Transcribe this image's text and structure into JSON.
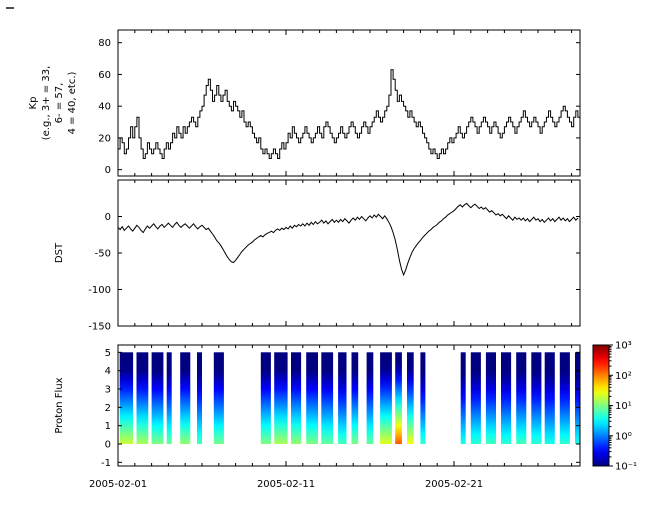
{
  "figure": {
    "background": "#ffffff",
    "line_color": "#000000",
    "frame_color": "#000000"
  },
  "x_axis": {
    "tick_labels": [
      "2005-02-01",
      "2005-02-11",
      "2005-02-21"
    ],
    "tick_days": [
      0,
      10,
      20
    ],
    "range_days": [
      0,
      27.5
    ],
    "minor_tick_interval_days": 1
  },
  "chart_data": [
    {
      "type": "line",
      "name": "kp-index",
      "ylabel_lines": [
        "Kp",
        "(e.g., 3+ = 33,",
        "6- = 57,",
        "4 = 40, etc.)"
      ],
      "ylim": [
        -4,
        88
      ],
      "yticks": [
        0,
        20,
        40,
        60,
        80
      ],
      "ytick_labels": [
        "0",
        "20",
        "40",
        "60",
        "80"
      ],
      "step": true,
      "x_start_day": 0,
      "dt_days": 0.125,
      "values": [
        13,
        20,
        17,
        10,
        13,
        20,
        27,
        20,
        27,
        33,
        20,
        13,
        7,
        10,
        17,
        13,
        10,
        13,
        17,
        13,
        10,
        7,
        13,
        17,
        13,
        17,
        23,
        20,
        27,
        23,
        20,
        27,
        23,
        27,
        30,
        33,
        30,
        27,
        33,
        37,
        40,
        47,
        53,
        57,
        50,
        43,
        47,
        53,
        47,
        43,
        47,
        50,
        43,
        40,
        37,
        43,
        40,
        37,
        33,
        37,
        30,
        27,
        30,
        27,
        23,
        20,
        17,
        20,
        13,
        10,
        13,
        10,
        7,
        10,
        13,
        10,
        7,
        13,
        17,
        13,
        17,
        23,
        20,
        27,
        23,
        20,
        17,
        20,
        23,
        27,
        23,
        20,
        17,
        20,
        23,
        27,
        23,
        20,
        27,
        30,
        27,
        23,
        20,
        17,
        20,
        23,
        27,
        23,
        20,
        23,
        27,
        30,
        27,
        23,
        20,
        23,
        27,
        30,
        27,
        23,
        27,
        30,
        33,
        37,
        33,
        30,
        33,
        37,
        40,
        47,
        63,
        57,
        50,
        43,
        47,
        43,
        40,
        37,
        33,
        37,
        33,
        30,
        27,
        30,
        27,
        23,
        20,
        17,
        13,
        10,
        13,
        10,
        7,
        10,
        13,
        10,
        13,
        17,
        20,
        17,
        20,
        23,
        27,
        23,
        20,
        23,
        27,
        30,
        33,
        30,
        27,
        23,
        27,
        30,
        33,
        30,
        27,
        23,
        27,
        30,
        27,
        23,
        20,
        23,
        27,
        30,
        33,
        30,
        27,
        23,
        27,
        30,
        33,
        37,
        33,
        30,
        27,
        30,
        33,
        30,
        27,
        23,
        27,
        30,
        33,
        37,
        33,
        30,
        27,
        30,
        33,
        37,
        40,
        37,
        33,
        30,
        27,
        33,
        37,
        33
      ]
    },
    {
      "type": "line",
      "name": "dst-index",
      "ylabel_lines": [
        "DST"
      ],
      "ylim": [
        -150,
        50
      ],
      "yticks": [
        0,
        -50,
        -100,
        -150
      ],
      "ytick_labels": [
        "0",
        "-50",
        "-100",
        "-150"
      ],
      "step": false,
      "x_start_day": 0,
      "dt_days": 0.125,
      "values": [
        -15,
        -18,
        -14,
        -19,
        -16,
        -13,
        -17,
        -20,
        -16,
        -12,
        -15,
        -19,
        -22,
        -17,
        -13,
        -16,
        -13,
        -10,
        -14,
        -17,
        -13,
        -11,
        -15,
        -12,
        -9,
        -12,
        -15,
        -11,
        -8,
        -12,
        -15,
        -12,
        -10,
        -13,
        -16,
        -13,
        -10,
        -14,
        -17,
        -14,
        -12,
        -15,
        -18,
        -16,
        -20,
        -24,
        -28,
        -33,
        -36,
        -40,
        -45,
        -50,
        -55,
        -59,
        -62,
        -63,
        -60,
        -56,
        -52,
        -48,
        -45,
        -42,
        -39,
        -37,
        -35,
        -32,
        -30,
        -28,
        -26,
        -28,
        -25,
        -23,
        -22,
        -20,
        -22,
        -19,
        -17,
        -19,
        -16,
        -18,
        -15,
        -17,
        -13,
        -16,
        -12,
        -14,
        -11,
        -13,
        -10,
        -13,
        -9,
        -12,
        -8,
        -11,
        -7,
        -10,
        -8,
        -5,
        -9,
        -6,
        -10,
        -7,
        -4,
        -8,
        -5,
        -8,
        -4,
        -7,
        -3,
        -6,
        -9,
        -5,
        -2,
        -5,
        -1,
        -4,
        0,
        -3,
        -6,
        -2,
        1,
        -2,
        2,
        -1,
        3,
        0,
        -3,
        1,
        -3,
        -8,
        -14,
        -22,
        -32,
        -45,
        -60,
        -72,
        -80,
        -73,
        -64,
        -56,
        -49,
        -44,
        -40,
        -36,
        -33,
        -29,
        -26,
        -23,
        -20,
        -18,
        -15,
        -13,
        -11,
        -8,
        -6,
        -3,
        -1,
        2,
        4,
        6,
        8,
        11,
        14,
        16,
        13,
        16,
        18,
        15,
        12,
        15,
        17,
        14,
        11,
        13,
        10,
        12,
        9,
        6,
        8,
        5,
        2,
        4,
        1,
        3,
        0,
        -3,
        1,
        -2,
        -5,
        -1,
        -4,
        -2,
        -5,
        -2,
        -6,
        -3,
        -7,
        -4,
        -1,
        -5,
        -3,
        -7,
        -4,
        -8,
        -5,
        -2,
        -6,
        -3,
        -7,
        -4,
        -1,
        -5,
        -2,
        -6,
        -3,
        -7,
        -4,
        -1,
        -5,
        -2
      ]
    },
    {
      "type": "heatmap",
      "name": "proton-flux-spectrogram",
      "ylabel_lines": [
        "Proton Flux"
      ],
      "ylim": [
        -1.2,
        5.4
      ],
      "yticks": [
        -1,
        0,
        1,
        2,
        3,
        4,
        5
      ],
      "ytick_labels": [
        "-1",
        "0",
        "1",
        "2",
        "3",
        "4",
        "5"
      ],
      "bar_y_range": [
        0,
        5
      ],
      "colormap": "jet",
      "flux_log_range": [
        -1,
        3
      ],
      "bars": [
        [
          0.1,
          0.9,
          20
        ],
        [
          1.1,
          1.8,
          15
        ],
        [
          2.0,
          2.7,
          10
        ],
        [
          2.9,
          3.2,
          8
        ],
        [
          3.7,
          4.3,
          12
        ],
        [
          4.7,
          5.0,
          6
        ],
        [
          5.7,
          6.3,
          9
        ],
        [
          8.5,
          9.1,
          10
        ],
        [
          9.3,
          10.1,
          15
        ],
        [
          10.3,
          10.9,
          12
        ],
        [
          11.2,
          11.9,
          10
        ],
        [
          12.1,
          12.8,
          8
        ],
        [
          13.1,
          13.6,
          6
        ],
        [
          13.9,
          14.3,
          10
        ],
        [
          14.8,
          15.2,
          8
        ],
        [
          15.6,
          16.3,
          25
        ],
        [
          16.5,
          16.9,
          150
        ],
        [
          17.2,
          17.6,
          30
        ],
        [
          18.0,
          18.3,
          5
        ],
        [
          20.4,
          20.7,
          4
        ],
        [
          21.0,
          21.6,
          5
        ],
        [
          21.9,
          22.5,
          6
        ],
        [
          22.8,
          23.4,
          5
        ],
        [
          23.7,
          24.3,
          6
        ],
        [
          24.6,
          25.2,
          5
        ],
        [
          25.4,
          26.0,
          4
        ],
        [
          26.3,
          26.9,
          5
        ],
        [
          27.2,
          27.5,
          4
        ]
      ],
      "colorbar": {
        "tick_labels": [
          "10³",
          "10²",
          "10¹",
          "10⁰",
          "10⁻¹"
        ],
        "tick_exponents": [
          3,
          2,
          1,
          0,
          -1
        ],
        "log_range": [
          -1,
          3
        ]
      }
    }
  ]
}
